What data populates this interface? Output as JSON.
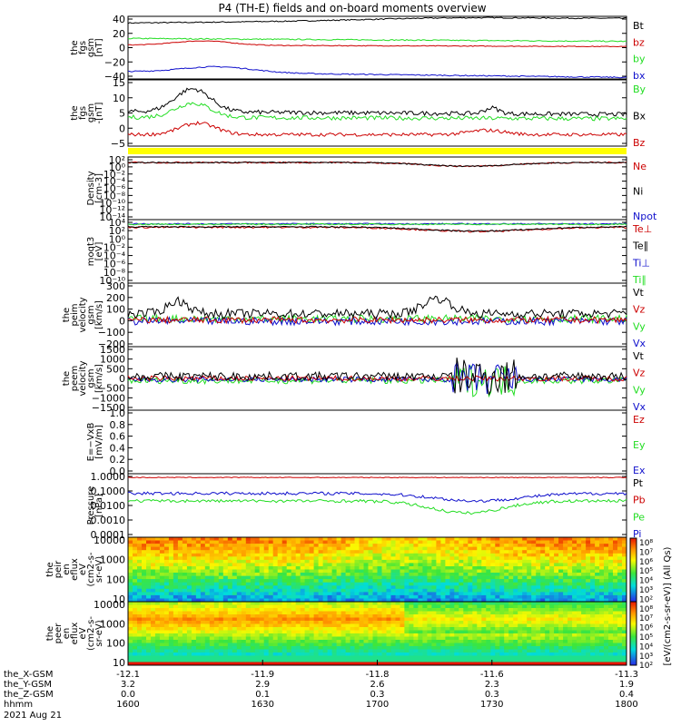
{
  "title": "P4 (TH-E) fields and on-board moments overview",
  "colors": {
    "black": "#000000",
    "red": "#cc0000",
    "green": "#22dd22",
    "blue": "#1010cc",
    "yellow": "#ffff00"
  },
  "chart_data": [
    {
      "type": "line",
      "ylabel": [
        "the",
        "fgs",
        "gsm",
        "[nT]"
      ],
      "yticks": [
        "40",
        "20",
        "0",
        "−20",
        "−40"
      ],
      "ylim": [
        -40,
        45
      ],
      "legend": [
        {
          "label": "Bt",
          "color": "black"
        },
        {
          "label": "bz",
          "color": "red"
        },
        {
          "label": "by",
          "color": "green"
        },
        {
          "label": "bx",
          "color": "blue"
        }
      ]
    },
    {
      "type": "line",
      "ylabel": [
        "the",
        "fgs",
        "gsm",
        "-[nT]"
      ],
      "yticks": [
        "15",
        "10",
        "5",
        "0",
        "−5"
      ],
      "ylim": [
        -7,
        16
      ],
      "legend": [
        {
          "label": "By",
          "color": "green"
        },
        {
          "label": "Bx",
          "color": "black"
        },
        {
          "label": "Bz",
          "color": "red"
        }
      ]
    },
    {
      "type": "line",
      "log": true,
      "ylabel": [
        "Density",
        "[cm-3]"
      ],
      "yticks": [
        "10²",
        "10⁰",
        "10⁻²",
        "10⁻⁴",
        "10⁻⁶",
        "10⁻⁸",
        "10⁻¹⁰",
        "10⁻¹²",
        "10⁻¹⁴"
      ],
      "legend": [
        {
          "label": "Ne",
          "color": "red"
        },
        {
          "label": "Ni",
          "color": "black"
        },
        {
          "label": "Npot",
          "color": "blue"
        }
      ]
    },
    {
      "type": "line",
      "log": true,
      "ylabel": [
        "moqt3",
        "[eV]"
      ],
      "yticks": [
        "10⁴",
        "10²",
        "10⁰",
        "10⁻²",
        "10⁻⁴",
        "10⁻⁶",
        "10⁻⁸",
        "10⁻¹⁰"
      ],
      "legend": [
        {
          "label": "Te⊥",
          "color": "red"
        },
        {
          "label": "Te∥",
          "color": "black"
        },
        {
          "label": "Ti⊥",
          "color": "blue"
        },
        {
          "label": "Ti∥",
          "color": "green"
        }
      ]
    },
    {
      "type": "line",
      "ylabel": [
        "the",
        "peim",
        "velocity",
        "gsm",
        "[km/s]"
      ],
      "yticks": [
        "300",
        "200",
        "100",
        "0",
        "−100",
        "−200"
      ],
      "ylim": [
        -200,
        300
      ],
      "legend": [
        {
          "label": "Vt",
          "color": "black"
        },
        {
          "label": "Vz",
          "color": "red"
        },
        {
          "label": "Vy",
          "color": "green"
        },
        {
          "label": "Vx",
          "color": "blue"
        }
      ]
    },
    {
      "type": "line",
      "ylabel": [
        "the",
        "peem",
        "velocity",
        "gsm",
        "[km/s]"
      ],
      "yticks": [
        "1500",
        "1000",
        "500",
        "0",
        "−500",
        "−1000",
        "−1500"
      ],
      "ylim": [
        -1500,
        1500
      ],
      "legend": [
        {
          "label": "Vt",
          "color": "black"
        },
        {
          "label": "Vz",
          "color": "red"
        },
        {
          "label": "Vy",
          "color": "green"
        },
        {
          "label": "Vx",
          "color": "blue"
        }
      ]
    },
    {
      "type": "line",
      "ylabel": [
        "E=−VxB",
        "[mV/m]"
      ],
      "yticks": [
        "1.0",
        "0.8",
        "0.6",
        "0.4",
        "0.2",
        "0.0"
      ],
      "ylim": [
        0,
        1
      ],
      "legend": [
        {
          "label": "Ez",
          "color": "red"
        },
        {
          "label": "Ey",
          "color": "green"
        },
        {
          "label": "Ex",
          "color": "blue"
        }
      ]
    },
    {
      "type": "line",
      "log": true,
      "ylabel": [
        "Pressure",
        "[nPa]"
      ],
      "yticks": [
        "1.0000",
        "0.1000",
        "0.0100",
        "0.0010",
        "0.0001"
      ],
      "legend": [
        {
          "label": "Pt",
          "color": "black"
        },
        {
          "label": "Pb",
          "color": "red"
        },
        {
          "label": "Pe",
          "color": "green"
        },
        {
          "label": "Pi",
          "color": "blue"
        }
      ]
    },
    {
      "type": "heatmap",
      "log": true,
      "ylabel": [
        "the",
        "peir",
        "en",
        "eflux",
        "eV",
        "(cm2-s-",
        "sr-eV)"
      ],
      "yticks": [
        "10000",
        "1000",
        "100",
        "10"
      ]
    },
    {
      "type": "heatmap",
      "log": true,
      "ylabel": [
        "the",
        "peer",
        "en",
        "eflux",
        "eV",
        "(cm2-s-",
        "sr-eV)"
      ],
      "yticks": [
        "10000",
        "1000",
        "100",
        "10"
      ]
    }
  ],
  "colorbar": {
    "ticks": [
      "10⁸",
      "10⁷",
      "10⁶",
      "10⁵",
      "10⁴",
      "10³",
      "10²",
      "10⁸",
      "10⁷",
      "10⁶",
      "10⁵",
      "10⁴",
      "10³",
      "10²"
    ],
    "label": "[eV/(cm2-s-sr-eV)] (All Qs)"
  },
  "xaxis": {
    "rows": [
      {
        "label": "the_X-GSM",
        "values": [
          "-12.1",
          "-11.9",
          "-11.8",
          "-11.6",
          "-11.3"
        ],
        "ticks": true
      },
      {
        "label": "the_Y-GSM",
        "values": [
          "3.2",
          "2.9",
          "2.6",
          "2.3",
          "1.9"
        ]
      },
      {
        "label": "the_Z-GSM",
        "values": [
          "0.0",
          "0.1",
          "0.3",
          "0.3",
          "0.4"
        ]
      },
      {
        "label": "hhmm",
        "values": [
          "1600",
          "1630",
          "1700",
          "1730",
          "1800"
        ]
      }
    ],
    "date": "2021 Aug 21",
    "hhmm_range": [
      "1600",
      "1800"
    ]
  }
}
